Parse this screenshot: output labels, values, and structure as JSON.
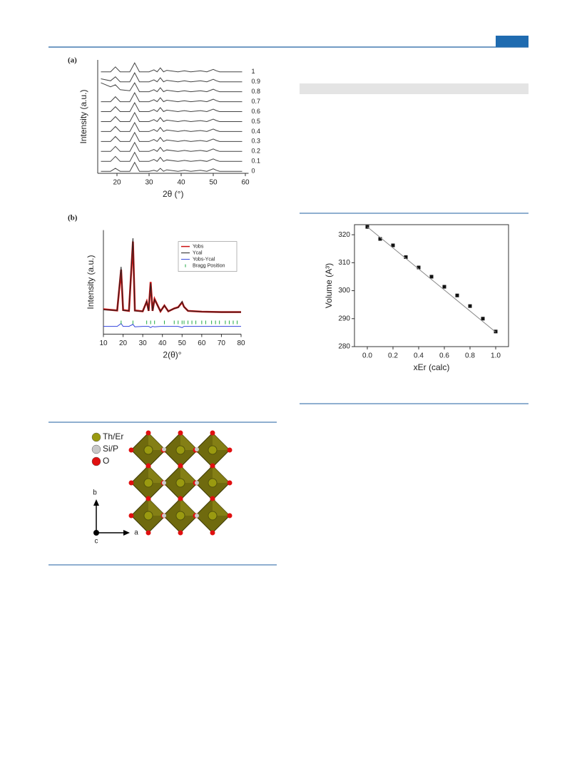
{
  "chart_data": [
    {
      "type": "line",
      "panel_label": "(a)",
      "x_label": "2θ (°)",
      "y_label": "Intensity (a.u.)",
      "xlim": [
        14,
        61
      ],
      "ylim": [
        0,
        11.4
      ],
      "xticks": [
        20,
        30,
        40,
        50,
        60
      ],
      "frame": "axes",
      "color": "#444444",
      "series_labels_at_end": true,
      "x": [
        15,
        18,
        19.5,
        21,
        24,
        25.5,
        27,
        30,
        31.5,
        32.5,
        33.5,
        34.5,
        35.5,
        39,
        41,
        43,
        46,
        48,
        50,
        51,
        52,
        55,
        59
      ],
      "series": [
        {
          "name": "1",
          "values": [
            10.2,
            10.2,
            10.7,
            10.2,
            10.2,
            11.1,
            10.2,
            10.2,
            10.4,
            10.2,
            10.6,
            10.2,
            10.35,
            10.2,
            10.3,
            10.2,
            10.3,
            10.2,
            10.45,
            10.3,
            10.2,
            10.2,
            10.2
          ]
        },
        {
          "name": "0.9",
          "values": [
            9.5,
            9.3,
            9.7,
            9.2,
            9.2,
            10.1,
            9.2,
            9.2,
            9.4,
            9.2,
            9.6,
            9.2,
            9.35,
            9.2,
            9.3,
            9.2,
            9.3,
            9.2,
            9.45,
            9.3,
            9.2,
            9.2,
            9.2
          ]
        },
        {
          "name": "0.8",
          "values": [
            9.1,
            8.7,
            8.9,
            8.4,
            8.3,
            9.1,
            8.2,
            8.2,
            8.4,
            8.2,
            8.6,
            8.2,
            8.35,
            8.2,
            8.3,
            8.2,
            8.3,
            8.2,
            8.45,
            8.3,
            8.2,
            8.2,
            8.2
          ]
        },
        {
          "name": "0.7",
          "values": [
            7.2,
            7.2,
            7.7,
            7.2,
            7.2,
            8.1,
            7.2,
            7.2,
            7.4,
            7.2,
            7.6,
            7.2,
            7.35,
            7.2,
            7.3,
            7.2,
            7.3,
            7.2,
            7.45,
            7.3,
            7.2,
            7.2,
            7.2
          ]
        },
        {
          "name": "0.6",
          "values": [
            6.2,
            6.2,
            6.7,
            6.2,
            6.2,
            7.1,
            6.2,
            6.2,
            6.4,
            6.2,
            6.6,
            6.2,
            6.35,
            6.2,
            6.3,
            6.2,
            6.3,
            6.2,
            6.45,
            6.3,
            6.2,
            6.2,
            6.2
          ]
        },
        {
          "name": "0.5",
          "values": [
            5.2,
            5.2,
            5.7,
            5.2,
            5.2,
            6.1,
            5.2,
            5.2,
            5.4,
            5.2,
            5.6,
            5.2,
            5.35,
            5.2,
            5.3,
            5.2,
            5.3,
            5.2,
            5.45,
            5.3,
            5.2,
            5.2,
            5.2
          ]
        },
        {
          "name": "0.4",
          "values": [
            4.2,
            4.2,
            4.7,
            4.2,
            4.2,
            5.1,
            4.2,
            4.2,
            4.4,
            4.2,
            4.6,
            4.2,
            4.35,
            4.2,
            4.3,
            4.2,
            4.3,
            4.2,
            4.45,
            4.3,
            4.2,
            4.2,
            4.2
          ]
        },
        {
          "name": "0.3",
          "values": [
            3.2,
            3.2,
            3.7,
            3.2,
            3.2,
            4.1,
            3.2,
            3.2,
            3.4,
            3.2,
            3.6,
            3.2,
            3.35,
            3.2,
            3.3,
            3.2,
            3.3,
            3.2,
            3.45,
            3.3,
            3.2,
            3.2,
            3.2
          ]
        },
        {
          "name": "0.2",
          "values": [
            2.2,
            2.2,
            2.7,
            2.2,
            2.2,
            3.1,
            2.2,
            2.2,
            2.4,
            2.2,
            2.6,
            2.2,
            2.35,
            2.2,
            2.3,
            2.2,
            2.3,
            2.2,
            2.45,
            2.3,
            2.2,
            2.2,
            2.2
          ]
        },
        {
          "name": "0.1",
          "values": [
            1.2,
            1.2,
            1.7,
            1.2,
            1.2,
            2.1,
            1.2,
            1.2,
            1.4,
            1.2,
            1.6,
            1.2,
            1.35,
            1.2,
            1.3,
            1.2,
            1.3,
            1.2,
            1.45,
            1.3,
            1.2,
            1.2,
            1.2
          ]
        },
        {
          "name": "0",
          "values": [
            0.2,
            0.2,
            0.5,
            0.2,
            0.2,
            1.1,
            0.2,
            0.2,
            0.3,
            0.2,
            0.5,
            0.2,
            0.35,
            0.2,
            0.3,
            0.2,
            0.3,
            0.2,
            0.45,
            0.3,
            0.2,
            0.2,
            0.2
          ]
        }
      ]
    },
    {
      "type": "line",
      "panel_label": "(b)",
      "x_label": "2(θ)°",
      "y_label": "Intensity (a.u.)",
      "xlim": [
        10,
        80
      ],
      "ylim": [
        -3.5,
        22
      ],
      "xticks": [
        10,
        20,
        30,
        40,
        50,
        60,
        70,
        80
      ],
      "frame": "axes",
      "legend": "upper right",
      "x": [
        10,
        17,
        19,
        20,
        23,
        25,
        26,
        30,
        32,
        33,
        34,
        35,
        36,
        39,
        41,
        43,
        46,
        48,
        50,
        51,
        53,
        60,
        70,
        80
      ],
      "series": [
        {
          "name": "Yobs",
          "color": "#cc1111",
          "style": "thick",
          "values": [
            2.6,
            2.3,
            12.3,
            2.4,
            2.2,
            19.2,
            2.3,
            2.1,
            4.5,
            2.2,
            9.3,
            2.2,
            5.1,
            2.1,
            3.5,
            2.1,
            2.8,
            3.1,
            4.3,
            3.2,
            2.2,
            2,
            1.9,
            1.9
          ]
        },
        {
          "name": "Ycal",
          "color": "#222222",
          "style": "line",
          "values": [
            2.5,
            2.3,
            13,
            2.3,
            2.2,
            20,
            2.2,
            2.1,
            4.5,
            2.2,
            9,
            2.2,
            5,
            2.1,
            3.5,
            2.1,
            2.8,
            3,
            4.5,
            3.2,
            2.2,
            2,
            1.9,
            1.9
          ]
        },
        {
          "name": "Yobs-Ycal",
          "color": "#3344dd",
          "style": "line",
          "values": [
            -1.6,
            -1.6,
            -0.9,
            -1.6,
            -1.6,
            -1.1,
            -1.7,
            -1.6,
            -1.6,
            -1.6,
            -1.9,
            -1.6,
            -1.7,
            -1.6,
            -1.6,
            -1.6,
            -1.6,
            -1.6,
            -1.9,
            -1.6,
            -1.6,
            -1.6,
            -1.6,
            -1.6
          ]
        },
        {
          "name": "Bragg Position",
          "color": "#22aa44",
          "style": "ticks",
          "x": [
            19,
            25,
            32,
            34,
            36,
            41,
            46,
            48,
            50,
            51,
            53,
            55,
            57,
            60,
            62,
            65,
            67,
            69,
            72,
            74,
            76,
            78
          ]
        }
      ]
    },
    {
      "type": "scatter",
      "x_label": "xEr (calc)",
      "y_label": "Volume (A³)",
      "xlim": [
        -0.1,
        1.1
      ],
      "ylim": [
        280,
        323.6
      ],
      "frame": "box",
      "xticks": [
        {
          "value": 0,
          "label": "0.0"
        },
        0.2,
        0.4,
        0.6,
        0.8,
        {
          "value": 1,
          "label": "1.0"
        }
      ],
      "yticks": [
        280,
        290,
        300,
        310,
        320
      ],
      "x": [
        0,
        0.1,
        0.2,
        0.3,
        0.4,
        0.5,
        0.6,
        0.7,
        0.8,
        0.9,
        1
      ],
      "series": [
        {
          "name": "Volume",
          "color": "#111111",
          "style": "markers",
          "values": [
            322.8,
            318.5,
            316.2,
            312,
            308.3,
            305,
            301.4,
            298.3,
            294.5,
            290,
            285.4
          ]
        },
        {
          "color": "#888888",
          "style": "line",
          "x": [
            0,
            1
          ],
          "values": [
            322.8,
            285.2
          ]
        }
      ]
    }
  ],
  "structure_figure": {
    "legend": [
      "Th/Er",
      "Si/P",
      "O"
    ],
    "axes": [
      "b",
      "a",
      "c"
    ]
  }
}
